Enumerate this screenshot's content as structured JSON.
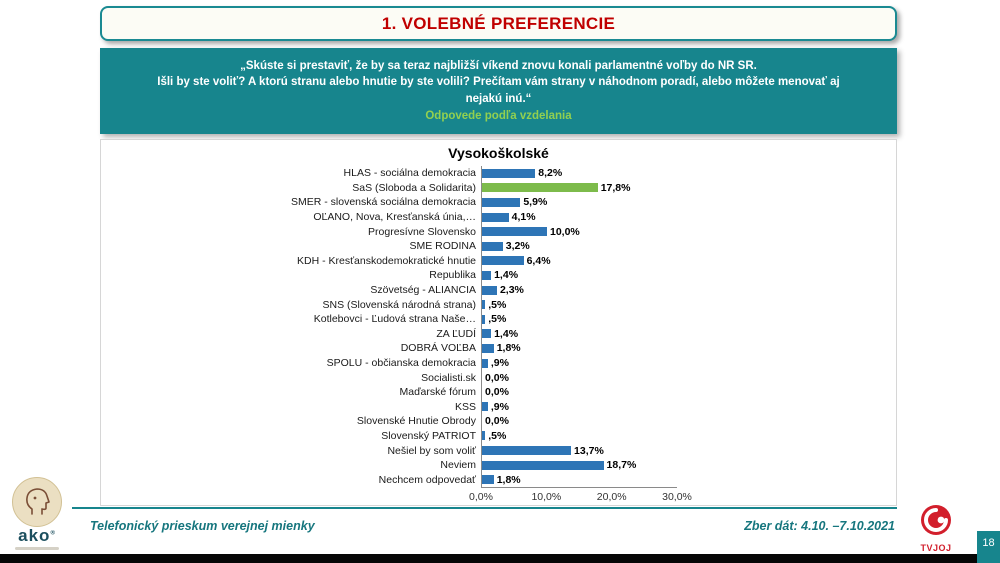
{
  "header": {
    "title": "1. VOLEBNÉ PREFERENCIE"
  },
  "question": {
    "lines": [
      "„Skúste si prestaviť, že by sa teraz najbližší víkend znovu konali parlamentné voľby do NR SR.",
      "Išli by ste voliť? A ktorú stranu alebo hnutie by ste volili? Prečítam vám strany v náhodnom poradí, alebo môžete menovať aj",
      "nejakú inú.“"
    ],
    "subtitle": "Odpovede podľa vzdelania"
  },
  "chart_data": {
    "type": "bar",
    "orientation": "horizontal",
    "title": "Vysokoškolské",
    "categories": [
      "HLAS - sociálna demokracia",
      "SaS (Sloboda a Solidarita)",
      "SMER - slovenská sociálna demokracia",
      "OĽANO, Nova, Kresťanská únia,…",
      "Progresívne Slovensko",
      "SME RODINA",
      "KDH - Kresťanskodemokratické hnutie",
      "Republika",
      "Szövetség - ALIANCIA",
      "SNS (Slovenská národná strana)",
      "Kotlebovci - Ľudová strana Naše…",
      "ZA ĽUDÍ",
      "DOBRÁ VOĽBA",
      "SPOLU - občianska demokracia",
      "Socialisti.sk",
      "Maďarské fórum",
      "KSS",
      "Slovenské Hnutie Obrody",
      "Slovenský PATRIOT",
      "Nešiel by som voliť",
      "Neviem",
      "Nechcem odpovedať"
    ],
    "values": [
      8.2,
      17.8,
      5.9,
      4.1,
      10.0,
      3.2,
      6.4,
      1.4,
      2.3,
      0.5,
      0.5,
      1.4,
      1.8,
      0.9,
      0.0,
      0.0,
      0.9,
      0.0,
      0.5,
      13.7,
      18.7,
      1.8
    ],
    "value_labels": [
      "8,2%",
      "17,8%",
      "5,9%",
      "4,1%",
      "10,0%",
      "3,2%",
      "6,4%",
      "1,4%",
      "2,3%",
      ",5%",
      ",5%",
      "1,4%",
      "1,8%",
      ",9%",
      "0,0%",
      "0,0%",
      ",9%",
      "0,0%",
      ",5%",
      "13,7%",
      "18,7%",
      "1,8%"
    ],
    "x_ticks": [
      "0,0%",
      "10,0%",
      "20,0%",
      "30,0%"
    ],
    "xlim": [
      0,
      30
    ],
    "grid": false,
    "legend": false,
    "bar_color": "#2E75B6",
    "highlight_color": "#7DBB4B",
    "highlight_index": 1
  },
  "footer": {
    "left_text": "Telefonický prieskum verejnej mienky",
    "right_text": "Zber dát: 4.10. –7.10.2021",
    "page_number": "18"
  },
  "logos": {
    "ako_text": "ako",
    "tvjoj_text": "TVJOJ"
  },
  "colors": {
    "teal": "#17858D",
    "title_red": "#C00000",
    "subtitle_green": "#92D050",
    "bar_blue": "#2E75B6",
    "bar_green": "#7DBB4B",
    "page_box_teal": "#17858D"
  }
}
